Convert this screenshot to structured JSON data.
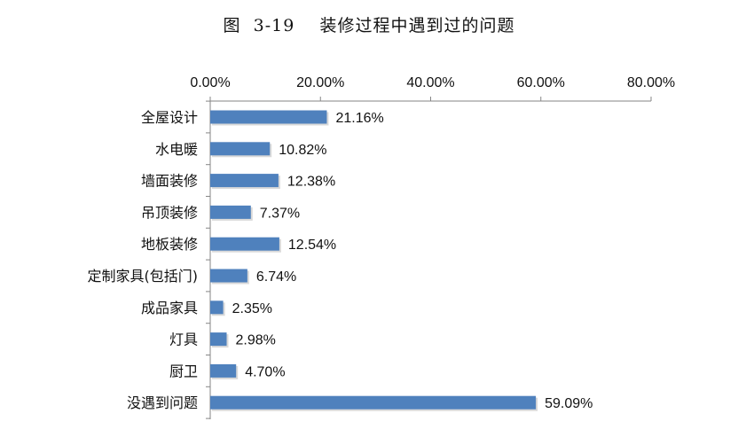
{
  "chart_data": {
    "type": "bar",
    "orientation": "horizontal",
    "title": "图  3-19    装修过程中遇到过的问题",
    "xlim": [
      0,
      80
    ],
    "x_ticks": [
      0,
      20,
      40,
      60,
      80
    ],
    "x_tick_labels": [
      "0.00%",
      "20.00%",
      "40.00%",
      "60.00%",
      "80.00%"
    ],
    "x_axis_position": "top",
    "categories": [
      "全屋设计",
      "水电暖",
      "墙面装修",
      "吊顶装修",
      "地板装修",
      "定制家具(包括门)",
      "成品家具",
      "灯具",
      "厨卫",
      "没遇到问题"
    ],
    "values": [
      21.16,
      10.82,
      12.38,
      7.37,
      12.54,
      6.74,
      2.35,
      2.98,
      4.7,
      59.09
    ],
    "value_labels": [
      "21.16%",
      "10.82%",
      "12.38%",
      "7.37%",
      "12.54%",
      "6.74%",
      "2.35%",
      "2.98%",
      "4.70%",
      "59.09%"
    ],
    "bar_color": "#4f81bd",
    "grid": false,
    "legend": "none"
  }
}
